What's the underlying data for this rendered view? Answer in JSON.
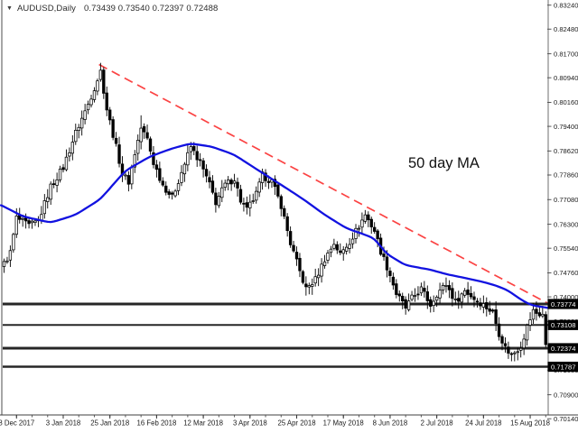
{
  "header": {
    "symbol_label": "AUDUSD,Daily",
    "ohlc_values": "0.73439 0.73540 0.72397 0.72488",
    "dropdown_icon": "triangle-down-icon"
  },
  "annotation": {
    "text": "50 day MA"
  },
  "colors": {
    "background": "#ffffff",
    "ma_line": "#1212e0",
    "trendline": "#fb4343",
    "level_line": "#262626",
    "candle_up_fill": "#ffffff",
    "candle_down_fill": "#000000",
    "candle_outline": "#000000",
    "axis_border": "#909090",
    "bottom_axis_line": "#3f3f3f",
    "axis_text": "#1b1b1b",
    "price_tag_bg": "#000000",
    "price_tag_text": "#ffffff",
    "title_text": "#2b2b2b",
    "annotation_text": "#121212"
  },
  "y_axis": {
    "ticks": [
      "0.83240",
      "0.82480",
      "0.81700",
      "0.80940",
      "0.80160",
      "0.79400",
      "0.78620",
      "0.77860",
      "0.77080",
      "0.76300",
      "0.75540",
      "0.74760",
      "0.74000",
      "0.73220",
      "0.72460",
      "0.71680",
      "0.70900",
      "0.70140"
    ]
  },
  "x_axis": {
    "labels": [
      "8 Dec 2017",
      "3 Jan 2018",
      "25 Jan 2018",
      "16 Feb 2018",
      "12 Mar 2018",
      "3 Apr 2018",
      "25 Apr 2018",
      "17 May 2018",
      "8 Jun 2018",
      "2 Jul 2018",
      "24 Jul 2018",
      "15 Aug 2018"
    ]
  },
  "chart_data": {
    "type": "candlestick",
    "symbol": "AUDUSD",
    "timeframe": "Daily",
    "title": "AUDUSD,Daily",
    "candle_count": 175,
    "last_candle": {
      "open": 0.73439,
      "high": 0.7354,
      "low": 0.72397,
      "close": 0.72488
    },
    "horizontal_levels": [
      {
        "price": 0.73774,
        "label": "0.73774"
      },
      {
        "price": 0.73108,
        "label": "0.73108"
      },
      {
        "price": 0.72374,
        "label": "0.72374"
      },
      {
        "price": 0.71787,
        "label": "0.71787"
      }
    ],
    "trendline": {
      "style": "dashed",
      "color_name": "red",
      "start_index": 30.5,
      "start_price": 0.8136,
      "end_index": 176.5,
      "end_price": 0.737
    },
    "moving_average": {
      "label": "50 day MA",
      "period": 50,
      "points": [
        [
          -1,
          0.769
        ],
        [
          0,
          0.7686
        ],
        [
          6,
          0.7655
        ],
        [
          15,
          0.7635
        ],
        [
          23,
          0.766
        ],
        [
          31,
          0.771
        ],
        [
          39,
          0.78
        ],
        [
          47,
          0.7845
        ],
        [
          54,
          0.787
        ],
        [
          60,
          0.7886
        ],
        [
          67,
          0.7875
        ],
        [
          74,
          0.785
        ],
        [
          81,
          0.7805
        ],
        [
          89,
          0.7755
        ],
        [
          96,
          0.771
        ],
        [
          103,
          0.766
        ],
        [
          110,
          0.7617
        ],
        [
          115,
          0.76
        ],
        [
          119,
          0.7585
        ],
        [
          123,
          0.7535
        ],
        [
          129,
          0.75
        ],
        [
          137,
          0.7486
        ],
        [
          142,
          0.7472
        ],
        [
          148,
          0.746
        ],
        [
          154,
          0.7447
        ],
        [
          158,
          0.7436
        ],
        [
          162,
          0.742
        ],
        [
          165,
          0.7398
        ],
        [
          168,
          0.738
        ],
        [
          170,
          0.7372
        ],
        [
          174,
          0.7366
        ],
        [
          176,
          0.7364
        ]
      ]
    },
    "close_anchors": [
      [
        0,
        0.7505
      ],
      [
        2,
        0.754
      ],
      [
        4,
        0.765
      ],
      [
        8,
        0.7625
      ],
      [
        11,
        0.764
      ],
      [
        15,
        0.775
      ],
      [
        19,
        0.781
      ],
      [
        23,
        0.792
      ],
      [
        27,
        0.801
      ],
      [
        31,
        0.8115
      ],
      [
        33,
        0.7995
      ],
      [
        36,
        0.7875
      ],
      [
        38,
        0.779
      ],
      [
        40,
        0.7765
      ],
      [
        42,
        0.7855
      ],
      [
        44,
        0.7935
      ],
      [
        46,
        0.79
      ],
      [
        48,
        0.7825
      ],
      [
        51,
        0.7755
      ],
      [
        54,
        0.7715
      ],
      [
        57,
        0.7795
      ],
      [
        60,
        0.7875
      ],
      [
        63,
        0.7825
      ],
      [
        66,
        0.7755
      ],
      [
        68,
        0.77
      ],
      [
        71,
        0.7755
      ],
      [
        74,
        0.7775
      ],
      [
        76,
        0.7705
      ],
      [
        78,
        0.7675
      ],
      [
        81,
        0.7725
      ],
      [
        83,
        0.7785
      ],
      [
        86,
        0.7765
      ],
      [
        89,
        0.769
      ],
      [
        92,
        0.757
      ],
      [
        95,
        0.748
      ],
      [
        97,
        0.7425
      ],
      [
        100,
        0.7455
      ],
      [
        103,
        0.752
      ],
      [
        106,
        0.757
      ],
      [
        108,
        0.7535
      ],
      [
        111,
        0.7575
      ],
      [
        114,
        0.7625
      ],
      [
        116,
        0.766
      ],
      [
        119,
        0.761
      ],
      [
        121,
        0.7545
      ],
      [
        124,
        0.747
      ],
      [
        126,
        0.741
      ],
      [
        129,
        0.7365
      ],
      [
        131,
        0.7395
      ],
      [
        134,
        0.7425
      ],
      [
        137,
        0.7375
      ],
      [
        139,
        0.741
      ],
      [
        142,
        0.744
      ],
      [
        145,
        0.7385
      ],
      [
        148,
        0.742
      ],
      [
        151,
        0.7395
      ],
      [
        154,
        0.7375
      ],
      [
        157,
        0.735
      ],
      [
        159,
        0.7285
      ],
      [
        161,
        0.724
      ],
      [
        163,
        0.7215
      ],
      [
        166,
        0.7245
      ],
      [
        168,
        0.7305
      ],
      [
        170,
        0.7355
      ],
      [
        172,
        0.734
      ],
      [
        173,
        0.7345
      ],
      [
        174,
        0.72488
      ]
    ],
    "forced_extremes": [
      {
        "index": 31,
        "high": 0.8136
      },
      {
        "index": 44,
        "high": 0.7975
      },
      {
        "index": 97,
        "low": 0.7404
      },
      {
        "index": 116,
        "high": 0.7675
      },
      {
        "index": 163,
        "low": 0.7196
      }
    ]
  }
}
